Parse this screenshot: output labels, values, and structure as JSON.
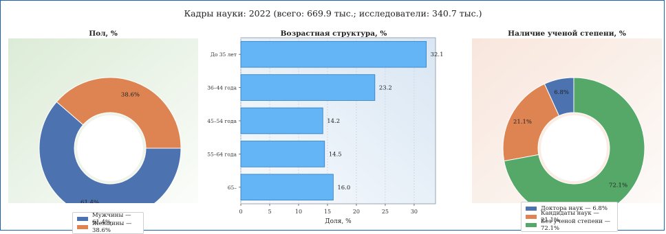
{
  "suptitle": "Кадры науки: 2022 (всего: 669.9 тыс.; исследователи: 340.7 тыс.)",
  "chart_data": [
    {
      "type": "pie",
      "style": "donut",
      "title": "Пол, %",
      "slices": [
        {
          "label": "Мужчины",
          "value": 61.4,
          "pct_label": "61.4%",
          "legend": "Мужчины — 61.4%",
          "color": "#4c72b0"
        },
        {
          "label": "Женщины",
          "value": 38.6,
          "pct_label": "38.6%",
          "legend": "Женщины — 38.6%",
          "color": "#dd8452"
        }
      ]
    },
    {
      "type": "bar",
      "orientation": "horizontal",
      "title": "Возрастная структура, %",
      "categories": [
        "До 35 лет",
        "36–44 года",
        "45–54 года",
        "55–64 года",
        "65–"
      ],
      "values": [
        32.1,
        23.2,
        14.2,
        14.5,
        16.0
      ],
      "value_labels": [
        "32.1",
        "23.2",
        "14.2",
        "14.5",
        "16.0"
      ],
      "xlabel": "Доля, %",
      "xlim": [
        0,
        33.7
      ],
      "xticks": [
        "0",
        "5",
        "10",
        "15",
        "20",
        "25",
        "30"
      ],
      "color": "#64b5f6",
      "edge_color": "#2f7bbf",
      "grid": true
    },
    {
      "type": "pie",
      "style": "donut",
      "title": "Наличие ученой степени, %",
      "slices": [
        {
          "label": "Доктора наук",
          "value": 6.8,
          "pct_label": "6.8%",
          "legend": "Доктора наук — 6.8%",
          "color": "#4c72b0"
        },
        {
          "label": "Кандидаты наук",
          "value": 21.1,
          "pct_label": "21.1%",
          "legend": "Кандидаты наук — 21.1%",
          "color": "#dd8452"
        },
        {
          "label": "Без ученой степени",
          "value": 72.1,
          "pct_label": "72.1%",
          "legend": "Без ученой степени — 72.1%",
          "color": "#55a868"
        }
      ]
    }
  ]
}
